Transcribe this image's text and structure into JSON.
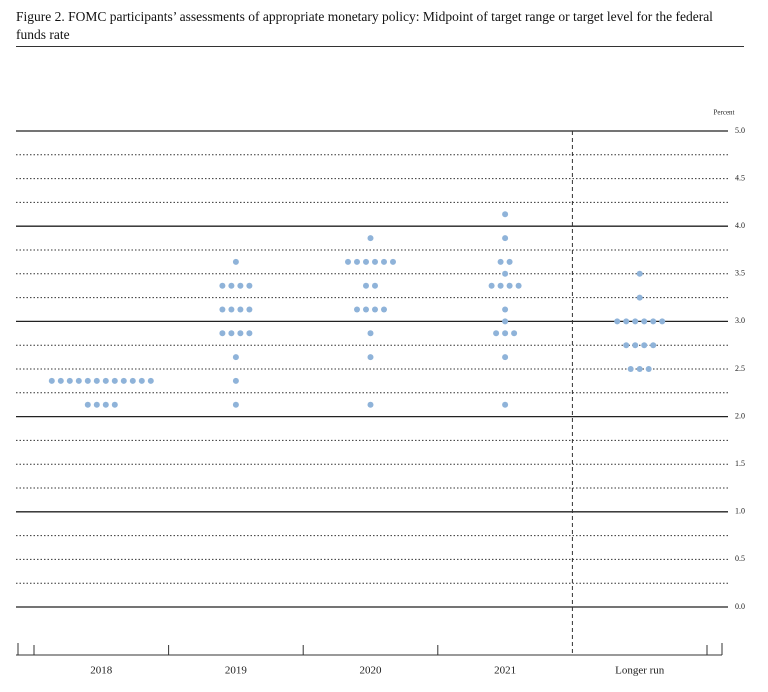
{
  "chart_data": {
    "type": "dot",
    "title": "Figure 2. FOMC participants’ assessments of appropriate monetary policy: Midpoint of target range or target level for the federal funds rate",
    "ylabel": "Percent",
    "categories": [
      "2018",
      "2019",
      "2020",
      "2021",
      "Longer run"
    ],
    "values": [
      [
        2.375,
        2.375,
        2.375,
        2.375,
        2.375,
        2.375,
        2.375,
        2.375,
        2.375,
        2.375,
        2.375,
        2.375,
        2.125,
        2.125,
        2.125,
        2.125
      ],
      [
        3.625,
        3.375,
        3.375,
        3.375,
        3.375,
        3.125,
        3.125,
        3.125,
        3.125,
        2.875,
        2.875,
        2.875,
        2.875,
        2.625,
        2.375,
        2.125
      ],
      [
        3.875,
        3.625,
        3.625,
        3.625,
        3.625,
        3.625,
        3.625,
        3.375,
        3.375,
        3.125,
        3.125,
        3.125,
        3.125,
        2.875,
        2.625,
        2.125
      ],
      [
        4.125,
        3.875,
        3.625,
        3.625,
        3.5,
        3.375,
        3.375,
        3.375,
        3.375,
        3.125,
        3.0,
        2.875,
        2.875,
        2.875,
        2.625,
        2.125
      ],
      [
        3.5,
        3.25,
        3.0,
        3.0,
        3.0,
        3.0,
        3.0,
        3.0,
        2.75,
        2.75,
        2.75,
        2.75,
        2.5,
        2.5,
        2.5
      ]
    ],
    "color": "#8fb3d9",
    "ylim": [
      0,
      5
    ],
    "yticks": [
      {
        "value": 0,
        "label": "0.0"
      },
      {
        "value": 0.5,
        "label": "0.5"
      },
      {
        "value": 1,
        "label": "1.0"
      },
      {
        "value": 1.5,
        "label": "1.5"
      },
      {
        "value": 2,
        "label": "2.0"
      },
      {
        "value": 2.5,
        "label": "2.5"
      },
      {
        "value": 3,
        "label": "3.0"
      },
      {
        "value": 3.5,
        "label": "3.5"
      },
      {
        "value": 4,
        "label": "4.0"
      },
      {
        "value": 4.5,
        "label": "4.5"
      },
      {
        "value": 5,
        "label": "5.0"
      }
    ],
    "grid": true
  }
}
